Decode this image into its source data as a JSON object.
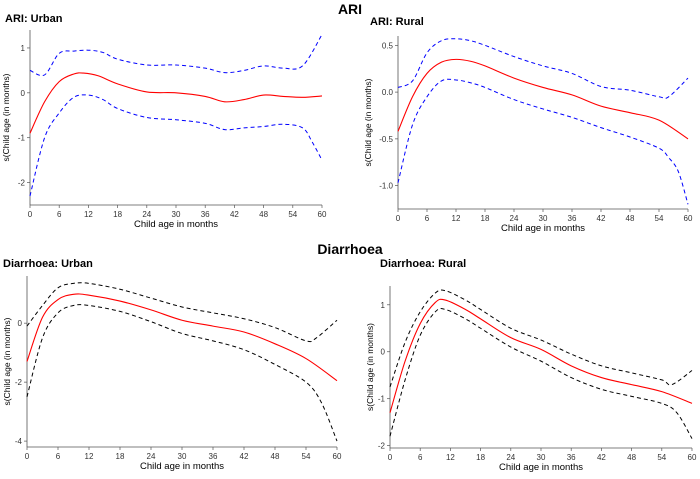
{
  "sections": {
    "top": "ARI",
    "bottom": "Diarrhoea"
  },
  "chart_data": [
    {
      "type": "line",
      "title": "ARI: Urban",
      "xlabel": "Child age in  months",
      "ylabel": "s(Child age (in months)",
      "xlim": [
        0,
        60
      ],
      "ylim": [
        -2.5,
        1.4
      ],
      "xticks": [
        0,
        6,
        12,
        18,
        24,
        30,
        36,
        42,
        48,
        54,
        60
      ],
      "yticks": [
        -2,
        -1,
        0,
        1
      ],
      "band_color": "#0000ff",
      "series": [
        {
          "name": "estimate",
          "color": "#ff0000",
          "style": "solid",
          "x": [
            0,
            3,
            6,
            9,
            11,
            14,
            18,
            24,
            30,
            36,
            40,
            44,
            48,
            52,
            56,
            60
          ],
          "y": [
            -0.9,
            -0.2,
            0.25,
            0.42,
            0.44,
            0.38,
            0.2,
            0.02,
            0.0,
            -0.08,
            -0.2,
            -0.15,
            -0.05,
            -0.08,
            -0.1,
            -0.07
          ]
        },
        {
          "name": "upper",
          "color": "#0000ff",
          "style": "dashed",
          "x": [
            0,
            3,
            6,
            9,
            12,
            15,
            18,
            24,
            30,
            36,
            40,
            44,
            48,
            52,
            56,
            60
          ],
          "y": [
            0.5,
            0.4,
            0.88,
            0.93,
            0.95,
            0.9,
            0.75,
            0.62,
            0.62,
            0.55,
            0.45,
            0.5,
            0.6,
            0.55,
            0.6,
            1.3
          ]
        },
        {
          "name": "lower",
          "color": "#0000ff",
          "style": "dashed",
          "x": [
            0,
            3,
            6,
            9,
            12,
            15,
            18,
            24,
            30,
            36,
            40,
            44,
            48,
            52,
            56,
            58,
            60
          ],
          "y": [
            -2.3,
            -1.0,
            -0.45,
            -0.1,
            -0.05,
            -0.15,
            -0.35,
            -0.55,
            -0.6,
            -0.68,
            -0.82,
            -0.78,
            -0.75,
            -0.7,
            -0.78,
            -1.1,
            -1.5
          ]
        }
      ]
    },
    {
      "type": "line",
      "title": "ARI: Rural",
      "xlabel": "Child age in  months",
      "ylabel": "s(Child age (in months)",
      "xlim": [
        0,
        60
      ],
      "ylim": [
        -1.25,
        0.6
      ],
      "xticks": [
        0,
        6,
        12,
        18,
        24,
        30,
        36,
        42,
        48,
        54,
        60
      ],
      "yticks": [
        -1.0,
        -0.5,
        0.0,
        0.5
      ],
      "band_color": "#0000ff",
      "series": [
        {
          "name": "estimate",
          "color": "#ff0000",
          "style": "solid",
          "x": [
            0,
            3,
            6,
            9,
            12,
            15,
            18,
            24,
            30,
            36,
            42,
            48,
            54,
            60
          ],
          "y": [
            -0.42,
            -0.05,
            0.2,
            0.32,
            0.35,
            0.33,
            0.28,
            0.15,
            0.05,
            -0.03,
            -0.15,
            -0.22,
            -0.3,
            -0.5
          ]
        },
        {
          "name": "upper",
          "color": "#0000ff",
          "style": "dashed",
          "x": [
            0,
            3,
            6,
            9,
            12,
            15,
            18,
            24,
            30,
            36,
            42,
            48,
            54,
            56,
            60
          ],
          "y": [
            0.05,
            0.12,
            0.42,
            0.55,
            0.57,
            0.55,
            0.5,
            0.38,
            0.28,
            0.2,
            0.06,
            0.02,
            -0.05,
            -0.05,
            0.15
          ]
        },
        {
          "name": "lower",
          "color": "#0000ff",
          "style": "dashed",
          "x": [
            0,
            3,
            6,
            9,
            12,
            15,
            18,
            24,
            30,
            36,
            42,
            48,
            54,
            56,
            58,
            60
          ],
          "y": [
            -0.97,
            -0.35,
            -0.05,
            0.12,
            0.13,
            0.1,
            0.05,
            -0.08,
            -0.18,
            -0.27,
            -0.38,
            -0.48,
            -0.6,
            -0.7,
            -0.85,
            -1.2
          ]
        }
      ]
    },
    {
      "type": "line",
      "title": "Diarrhoea: Urban",
      "xlabel": "Child age in  months",
      "ylabel": "s(Child age (in months)",
      "xlim": [
        0,
        60
      ],
      "ylim": [
        -4.2,
        1.6
      ],
      "xticks": [
        0,
        6,
        12,
        18,
        24,
        30,
        36,
        42,
        48,
        54,
        60
      ],
      "yticks": [
        -4,
        -2,
        0
      ],
      "band_color": "#000000",
      "series": [
        {
          "name": "estimate",
          "color": "#ff0000",
          "style": "solid",
          "x": [
            0,
            3,
            6,
            9,
            12,
            18,
            24,
            30,
            36,
            42,
            48,
            54,
            60
          ],
          "y": [
            -1.3,
            0.2,
            0.8,
            0.98,
            0.95,
            0.75,
            0.45,
            0.1,
            -0.1,
            -0.3,
            -0.7,
            -1.2,
            -1.95
          ]
        },
        {
          "name": "upper",
          "color": "#000000",
          "style": "dashed",
          "x": [
            0,
            3,
            6,
            9,
            12,
            18,
            24,
            30,
            36,
            42,
            48,
            54,
            56,
            60
          ],
          "y": [
            -0.1,
            0.6,
            1.2,
            1.35,
            1.35,
            1.15,
            0.85,
            0.55,
            0.35,
            0.15,
            -0.15,
            -0.6,
            -0.5,
            0.1
          ]
        },
        {
          "name": "lower",
          "color": "#000000",
          "style": "dashed",
          "x": [
            0,
            3,
            6,
            9,
            12,
            18,
            24,
            30,
            36,
            42,
            48,
            54,
            57,
            60
          ],
          "y": [
            -2.5,
            -0.5,
            0.35,
            0.6,
            0.6,
            0.4,
            0.05,
            -0.35,
            -0.6,
            -0.9,
            -1.4,
            -2.0,
            -2.7,
            -4.0
          ]
        }
      ]
    },
    {
      "type": "line",
      "title": "Diarrhoea: Rural",
      "xlabel": "Child age in  months",
      "ylabel": "s(Child age (in months)",
      "xlim": [
        0,
        60
      ],
      "ylim": [
        -2.05,
        1.4
      ],
      "xticks": [
        0,
        6,
        12,
        18,
        24,
        30,
        36,
        42,
        48,
        54,
        60
      ],
      "yticks": [
        -2,
        -1,
        0,
        1
      ],
      "band_color": "#000000",
      "series": [
        {
          "name": "estimate",
          "color": "#ff0000",
          "style": "solid",
          "x": [
            0,
            3,
            6,
            9,
            11,
            15,
            18,
            24,
            30,
            36,
            42,
            48,
            54,
            60
          ],
          "y": [
            -1.3,
            -0.2,
            0.6,
            1.05,
            1.1,
            0.9,
            0.7,
            0.3,
            0.05,
            -0.3,
            -0.55,
            -0.7,
            -0.85,
            -1.1
          ]
        },
        {
          "name": "upper",
          "color": "#000000",
          "style": "dashed",
          "x": [
            0,
            3,
            6,
            9,
            11,
            15,
            18,
            24,
            30,
            36,
            42,
            48,
            54,
            56,
            60
          ],
          "y": [
            -0.75,
            0.2,
            0.85,
            1.25,
            1.3,
            1.1,
            0.9,
            0.5,
            0.25,
            -0.05,
            -0.3,
            -0.45,
            -0.6,
            -0.7,
            -0.4
          ]
        },
        {
          "name": "lower",
          "color": "#000000",
          "style": "dashed",
          "x": [
            0,
            3,
            6,
            9,
            11,
            15,
            18,
            24,
            30,
            36,
            42,
            48,
            54,
            57,
            60
          ],
          "y": [
            -1.8,
            -0.6,
            0.35,
            0.85,
            0.9,
            0.7,
            0.5,
            0.1,
            -0.2,
            -0.55,
            -0.8,
            -0.95,
            -1.1,
            -1.3,
            -1.85
          ]
        }
      ]
    }
  ]
}
